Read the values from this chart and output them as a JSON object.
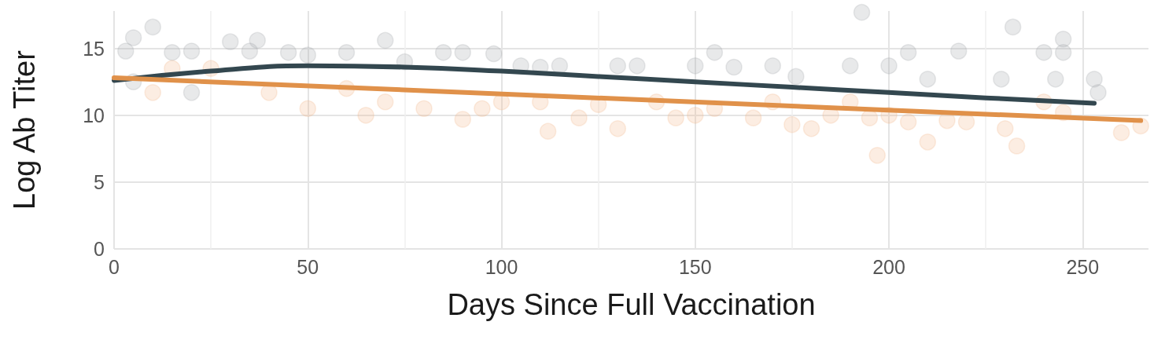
{
  "chart_data": {
    "type": "line",
    "xlabel": "Days Since Full Vaccination",
    "ylabel": "Log Ab Titer",
    "xlim": [
      0,
      267
    ],
    "ylim": [
      0,
      17.8
    ],
    "xticks": [
      0,
      50,
      100,
      150,
      200,
      250
    ],
    "yticks": [
      0,
      5,
      10,
      15
    ],
    "grid": true,
    "series": [
      {
        "type": "scatter",
        "marker": "circle",
        "color": "#a3a9ac",
        "x": [
          10,
          5,
          20,
          3,
          15,
          30,
          37,
          35,
          45,
          50,
          60,
          70,
          75,
          85,
          90,
          98,
          105,
          110,
          115,
          130,
          135,
          150,
          155,
          160,
          170,
          176,
          190,
          193,
          200,
          205,
          210,
          218,
          229,
          232,
          240,
          245,
          245,
          243,
          253,
          254,
          20,
          5
        ],
        "values": [
          16.6,
          15.8,
          14.8,
          14.8,
          14.7,
          15.5,
          15.6,
          14.8,
          14.7,
          14.5,
          14.7,
          15.6,
          14,
          14.7,
          14.7,
          14.6,
          13.7,
          13.6,
          13.7,
          13.7,
          13.7,
          13.7,
          14.7,
          13.6,
          13.7,
          12.9,
          13.7,
          17.7,
          13.7,
          14.7,
          12.7,
          14.8,
          12.7,
          16.6,
          14.7,
          15.7,
          14.7,
          12.7,
          12.7,
          11.7,
          11.7,
          12.5
        ]
      },
      {
        "type": "scatter",
        "marker": "circle",
        "color": "#f2b68c",
        "x": [
          10,
          15,
          25,
          40,
          50,
          60,
          70,
          80,
          90,
          95,
          100,
          110,
          120,
          125,
          130,
          140,
          145,
          150,
          155,
          165,
          170,
          175,
          185,
          190,
          195,
          197,
          200,
          205,
          210,
          215,
          220,
          230,
          233,
          240,
          245,
          260,
          265,
          112,
          180,
          65
        ],
        "values": [
          11.7,
          13.5,
          13.5,
          11.7,
          10.5,
          12,
          11,
          10.5,
          9.7,
          10.5,
          11,
          11,
          9.8,
          10.8,
          9,
          11,
          9.8,
          10,
          10.5,
          9.8,
          11,
          9.3,
          10,
          11,
          9.8,
          7,
          10,
          9.5,
          8,
          9.6,
          9.5,
          9,
          7.7,
          11,
          10.2,
          8.7,
          9.2,
          8.8,
          9,
          10
        ]
      },
      {
        "marker": "none",
        "color": "#33474f",
        "x": [
          0,
          25,
          50,
          75,
          100,
          125,
          150,
          175,
          200,
          225,
          253
        ],
        "values": [
          12.6,
          13.3,
          13.7,
          13.6,
          13.3,
          12.9,
          12.5,
          12.1,
          11.7,
          11.3,
          10.9
        ]
      },
      {
        "marker": "none",
        "color": "#e0914a",
        "x": [
          0,
          265
        ],
        "values": [
          12.8,
          9.6
        ]
      }
    ]
  }
}
